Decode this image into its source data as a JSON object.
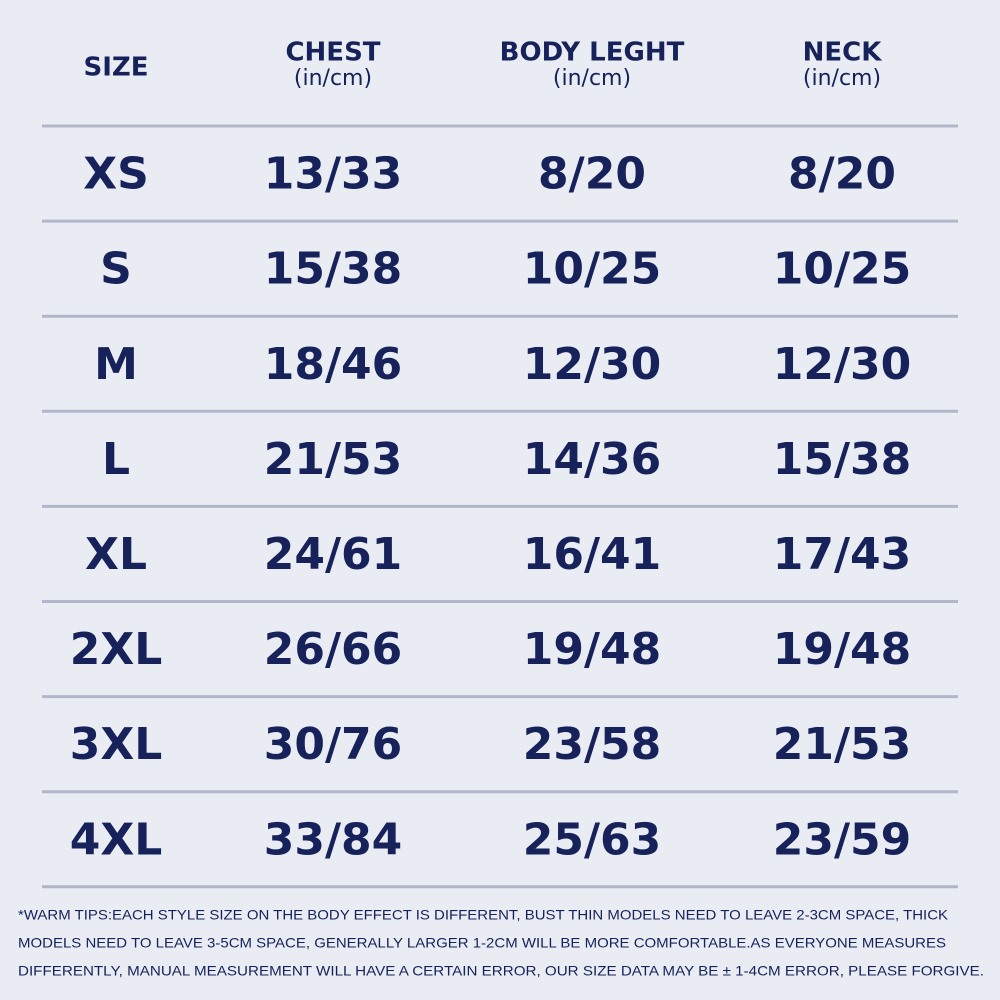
{
  "table": {
    "header": [
      {
        "title": "SIZE"
      },
      {
        "title": "CHEST",
        "unit": "(in/cm)"
      },
      {
        "title": "BODY LEGHT",
        "unit": "(in/cm)"
      },
      {
        "title": "NECK",
        "unit": "(in/cm)"
      }
    ],
    "rows": [
      [
        "XS",
        "13/33",
        "8/20",
        "8/20"
      ],
      [
        "S",
        "15/38",
        "10/25",
        "10/25"
      ],
      [
        "M",
        "18/46",
        "12/30",
        "12/30"
      ],
      [
        "L",
        "21/53",
        "14/36",
        "15/38"
      ],
      [
        "XL",
        "24/61",
        "16/41",
        "17/43"
      ],
      [
        "2XL",
        "26/66",
        "19/48",
        "19/48"
      ],
      [
        "3XL",
        "30/76",
        "23/58",
        "21/53"
      ],
      [
        "4XL",
        "33/84",
        "25/63",
        "23/59"
      ]
    ]
  },
  "note": [
    "*WARM TIPS:EACH STYLE SIZE ON THE BODY EFFECT IS DIFFERENT, BUST THIN MODELS NEED TO LEAVE 2-3CM SPACE, THICK",
    "MODELS NEED TO LEAVE 3-5CM SPACE, GENERALLY LARGER 1-2CM WILL BE MORE COMFORTABLE.AS EVERYONE MEASURES",
    "DIFFERENTLY, MANUAL MEASUREMENT WILL HAVE A CERTAIN ERROR, OUR SIZE DATA MAY BE ± 1-4CM ERROR, PLEASE FORGIVE."
  ]
}
